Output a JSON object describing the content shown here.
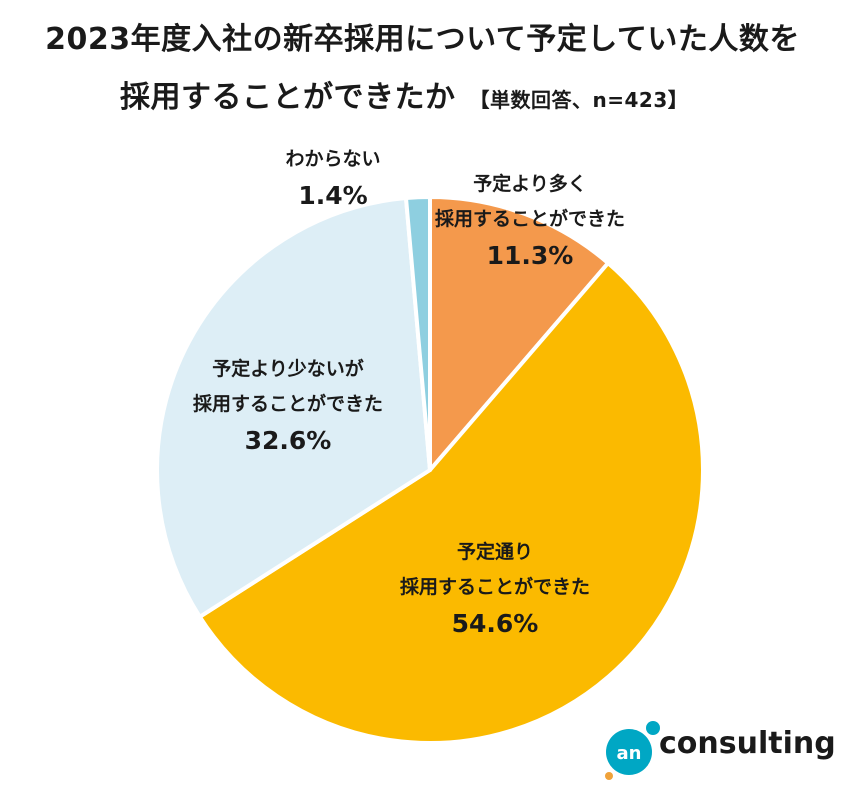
{
  "title_line1": "2023年度入社の新卒採用について予定していた人数を",
  "title_line2": "採用することができたか",
  "subtitle": "【単数回答、n=423】",
  "logo": {
    "mark_text": "an",
    "word": "consulting",
    "mark_color": "#00a7c4",
    "accent_color": "#f0a23a"
  },
  "chart_data": {
    "type": "pie",
    "title": "2023年度入社の新卒採用について予定していた人数を採用することができたか",
    "subtitle": "【単数回答、n=423】",
    "slices": [
      {
        "label_lines": [
          "予定より多く",
          "採用することができた"
        ],
        "value": 11.3,
        "value_label": "11.3%",
        "color": "#f4994c"
      },
      {
        "label_lines": [
          "予定通り",
          "採用することができた"
        ],
        "value": 54.6,
        "value_label": "54.6%",
        "color": "#fbba00"
      },
      {
        "label_lines": [
          "予定より少ないが",
          "採用することができた"
        ],
        "value": 32.6,
        "value_label": "32.6%",
        "color": "#ddeef6"
      },
      {
        "label_lines": [
          "わからない"
        ],
        "value": 1.4,
        "value_label": "1.4%",
        "color": "#8ecfe0"
      }
    ],
    "start": "12 o'clock",
    "direction": "clockwise"
  }
}
